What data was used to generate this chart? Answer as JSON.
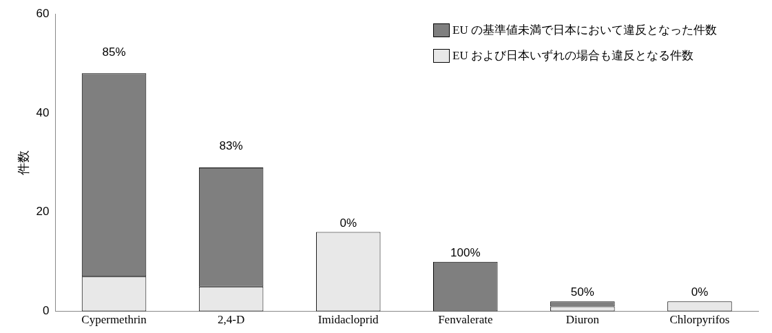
{
  "chart_data": {
    "type": "bar",
    "stacked": true,
    "ylabel": "件数",
    "categories": [
      "Cypermethrin",
      "2,4-D",
      "Imidacloprid",
      "Fenvalerate",
      "Diuron",
      "Chlorpyrifos"
    ],
    "series": [
      {
        "name": "EU および日本いずれの場合も違反となる件数",
        "color": "#e8e8e8",
        "values": [
          7,
          5,
          16,
          0,
          1,
          2
        ]
      },
      {
        "name": "EU の基準値未満で日本において違反となった件数",
        "color": "#7f7f7f",
        "values": [
          41,
          24,
          0,
          10,
          1,
          0
        ]
      }
    ],
    "ylim": [
      0,
      60
    ],
    "yticks": [
      0,
      20,
      40,
      60
    ],
    "grid": false,
    "legend": "top right",
    "annotations": [
      {
        "text": "85%",
        "x": "Cypermethrin",
        "y": 48
      },
      {
        "text": "83%",
        "x": "2,4-D",
        "y": 29
      },
      {
        "text": "0%",
        "x": "Imidacloprid",
        "y": 16
      },
      {
        "text": "100%",
        "x": "Fenvalerate",
        "y": 10
      },
      {
        "text": "50%",
        "x": "Diuron",
        "y": 2
      },
      {
        "text": "0%",
        "x": "Chlorpyrifos",
        "y": 2
      }
    ]
  }
}
